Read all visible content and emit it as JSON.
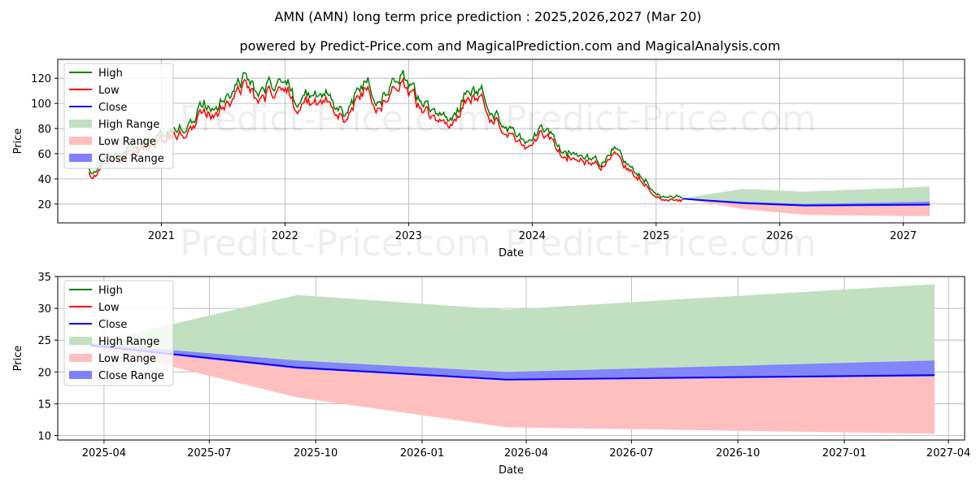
{
  "title": "AMN (AMN) long term price prediction : 2025,2026,2027 (Mar 20)",
  "subtitle": "powered by Predict-Price.com and MagicalPrediction.com and MagicalAnalysis.com",
  "watermark": "Predict-Price.com",
  "colors": {
    "high": "#008000",
    "low": "#ff0000",
    "close": "#0000ff",
    "high_range": "#c1e0c1",
    "low_range": "#ffbfbf",
    "close_range": "#7f7fff"
  },
  "legend": [
    "High",
    "Low",
    "Close",
    "High Range",
    "Low Range",
    "Close Range"
  ],
  "chart_data": [
    {
      "type": "line",
      "xlabel": "Date",
      "ylabel": "Price",
      "xlim": [
        "2020-03-01",
        "2027-07-01"
      ],
      "ylim": [
        5,
        135
      ],
      "xticks": [
        "2021",
        "2022",
        "2023",
        "2024",
        "2025",
        "2026",
        "2027"
      ],
      "yticks": [
        20,
        40,
        60,
        80,
        100,
        120
      ],
      "legend_position": "upper-left",
      "grid": true,
      "history": {
        "dates": [
          "2020-06-01",
          "2020-06-20",
          "2020-07-10",
          "2020-08-01",
          "2020-09-01",
          "2020-10-01",
          "2020-11-01",
          "2020-12-01",
          "2021-01-01",
          "2021-02-01",
          "2021-03-15",
          "2021-04-15",
          "2021-05-15",
          "2021-06-15",
          "2021-07-15",
          "2021-08-15",
          "2021-09-15",
          "2021-10-15",
          "2021-11-15",
          "2021-12-15",
          "2022-01-05",
          "2022-02-01",
          "2022-03-01",
          "2022-04-01",
          "2022-05-01",
          "2022-06-01",
          "2022-07-01",
          "2022-08-01",
          "2022-09-01",
          "2022-10-01",
          "2022-11-01",
          "2022-12-01",
          "2023-01-01",
          "2023-02-01",
          "2023-03-01",
          "2023-04-01",
          "2023-05-01",
          "2023-06-01",
          "2023-07-01",
          "2023-08-01",
          "2023-09-01",
          "2023-10-01",
          "2023-11-01",
          "2023-12-01",
          "2024-01-01",
          "2024-02-01",
          "2024-03-01",
          "2024-04-01",
          "2024-05-01",
          "2024-06-01",
          "2024-07-01",
          "2024-08-01",
          "2024-09-01",
          "2024-10-01",
          "2024-11-01",
          "2024-12-01",
          "2025-01-01",
          "2025-02-01",
          "2025-03-20"
        ],
        "close": [
          46,
          43,
          52,
          55,
          58,
          62,
          66,
          70,
          74,
          76,
          78,
          90,
          95,
          98,
          105,
          112,
          118,
          98,
          112,
          115,
          120,
          100,
          105,
          102,
          104,
          95,
          90,
          105,
          115,
          100,
          108,
          120,
          112,
          100,
          92,
          85,
          88,
          96,
          110,
          108,
          90,
          86,
          75,
          70,
          73,
          76,
          75,
          57,
          60,
          56,
          55,
          50,
          62,
          52,
          45,
          38,
          26,
          25,
          24
        ]
      },
      "close_range_band": {
        "dates": [
          "2025-03-20",
          "2025-09-15",
          "2026-03-15",
          "2027-03-20"
        ],
        "upper": [
          24.5,
          21.8,
          20.0,
          21.8
        ],
        "lower": [
          24.0,
          20.5,
          18.7,
          19.3
        ]
      },
      "forecast": {
        "dates": [
          "2025-03-20",
          "2025-09-15",
          "2026-03-15",
          "2027-03-20"
        ],
        "close": [
          24.2,
          20.7,
          18.8,
          19.5
        ],
        "high_range_upper": [
          24.5,
          32.1,
          29.8,
          33.8
        ],
        "low_range_lower": [
          24.0,
          16.0,
          11.3,
          10.3
        ]
      }
    },
    {
      "type": "line",
      "xlabel": "Date",
      "ylabel": "Price",
      "xlim": [
        "2025-02-20",
        "2027-04-15"
      ],
      "ylim": [
        9.3,
        35
      ],
      "xticks": [
        "2025-04",
        "2025-07",
        "2025-10",
        "2026-01",
        "2026-04",
        "2026-07",
        "2026-10",
        "2027-01",
        "2027-04"
      ],
      "yticks": [
        10,
        15,
        20,
        25,
        30,
        35
      ],
      "legend_position": "upper-left",
      "grid": true,
      "close_range_band": {
        "dates": [
          "2025-03-20",
          "2025-09-15",
          "2026-03-15",
          "2027-03-20"
        ],
        "upper": [
          24.5,
          21.8,
          20.0,
          21.8
        ],
        "lower": [
          24.0,
          20.5,
          18.7,
          19.3
        ]
      },
      "forecast": {
        "dates": [
          "2025-03-20",
          "2025-09-15",
          "2026-03-15",
          "2027-03-20"
        ],
        "close": [
          24.2,
          20.7,
          18.8,
          19.5
        ],
        "high_range_upper": [
          24.5,
          32.1,
          29.8,
          33.8
        ],
        "low_range_lower": [
          24.0,
          16.0,
          11.3,
          10.3
        ]
      }
    }
  ]
}
